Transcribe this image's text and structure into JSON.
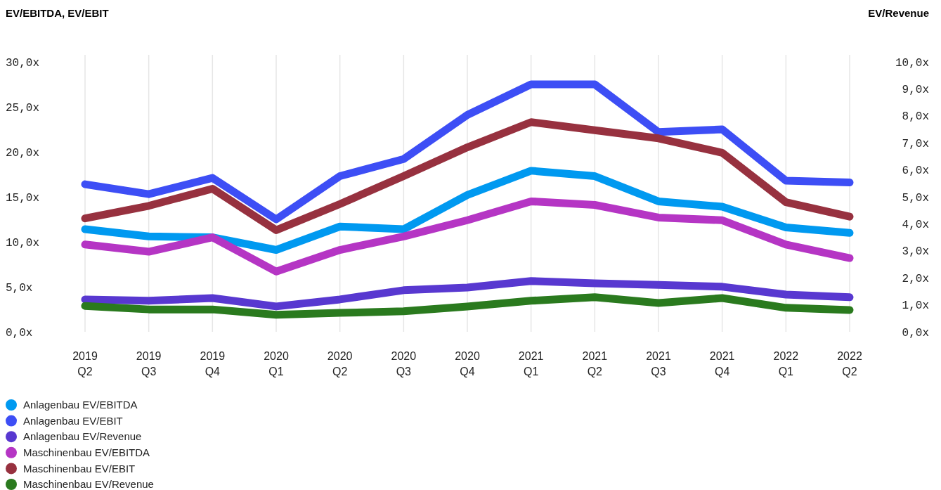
{
  "chart_data": {
    "type": "line",
    "ylabel": "EV/EBITDA, EV/EBIT",
    "y2label": "EV/Revenue",
    "categories": [
      "2019 Q2",
      "2019 Q3",
      "2019 Q4",
      "2020 Q1",
      "2020 Q2",
      "2020 Q3",
      "2020 Q4",
      "2021 Q1",
      "2021 Q2",
      "2021 Q3",
      "2021 Q4",
      "2022 Q1",
      "2022 Q2"
    ],
    "ylim": [
      0,
      30
    ],
    "yticks": [
      {
        "value": 0,
        "label": "0,0x"
      },
      {
        "value": 5,
        "label": "5,0x"
      },
      {
        "value": 10,
        "label": "10,0x"
      },
      {
        "value": 15,
        "label": "15,0x"
      },
      {
        "value": 20,
        "label": "20,0x"
      },
      {
        "value": 25,
        "label": "25,0x"
      },
      {
        "value": 30,
        "label": "30,0x"
      }
    ],
    "y2lim": [
      0,
      10
    ],
    "y2ticks": [
      {
        "value": 0,
        "label": "0,0x"
      },
      {
        "value": 1,
        "label": "1,0x"
      },
      {
        "value": 2,
        "label": "2,0x"
      },
      {
        "value": 3,
        "label": "3,0x"
      },
      {
        "value": 4,
        "label": "4,0x"
      },
      {
        "value": 5,
        "label": "5,0x"
      },
      {
        "value": 6,
        "label": "6,0x"
      },
      {
        "value": 7,
        "label": "7,0x"
      },
      {
        "value": 8,
        "label": "8,0x"
      },
      {
        "value": 9,
        "label": "9,0x"
      },
      {
        "value": 10,
        "label": "10,0x"
      }
    ],
    "grid": "x",
    "legend": "bottom",
    "marker": "none",
    "line_style": "solid",
    "series": [
      {
        "name": "Anlagenbau EV/EBITDA",
        "color": "#0099f0",
        "values": [
          11.4,
          10.6,
          10.5,
          9.1,
          11.7,
          11.4,
          15.2,
          17.9,
          17.3,
          14.5,
          13.9,
          11.6,
          11.0
        ]
      },
      {
        "name": "Anlagenbau EV/EBIT",
        "color": "#3d4ef5",
        "values": [
          16.4,
          15.3,
          17.1,
          12.5,
          17.3,
          19.2,
          24.1,
          27.5,
          27.5,
          22.2,
          22.5,
          16.8,
          16.6
        ]
      },
      {
        "name": "Anlagenbau EV/Revenue",
        "color": "#5838d0",
        "axis": "y2",
        "values": [
          1.2,
          1.15,
          1.25,
          0.94,
          1.2,
          1.54,
          1.64,
          1.88,
          1.8,
          1.74,
          1.67,
          1.38,
          1.28
        ]
      },
      {
        "name": "Maschinenbau EV/EBITDA",
        "color": "#b535c4",
        "values": [
          9.7,
          8.9,
          10.5,
          6.7,
          9.1,
          10.6,
          12.4,
          14.5,
          14.1,
          12.7,
          12.4,
          9.7,
          8.2
        ]
      },
      {
        "name": "Maschinenbau EV/EBIT",
        "color": "#97313f",
        "values": [
          12.6,
          14.0,
          15.9,
          11.3,
          14.2,
          17.3,
          20.5,
          23.3,
          22.4,
          21.5,
          19.9,
          14.4,
          12.8
        ]
      },
      {
        "name": "Maschinenbau EV/Revenue",
        "color": "#2a7a1e",
        "axis": "y2",
        "values": [
          0.96,
          0.83,
          0.83,
          0.63,
          0.7,
          0.76,
          0.94,
          1.15,
          1.28,
          1.07,
          1.25,
          0.89,
          0.81
        ]
      }
    ]
  }
}
